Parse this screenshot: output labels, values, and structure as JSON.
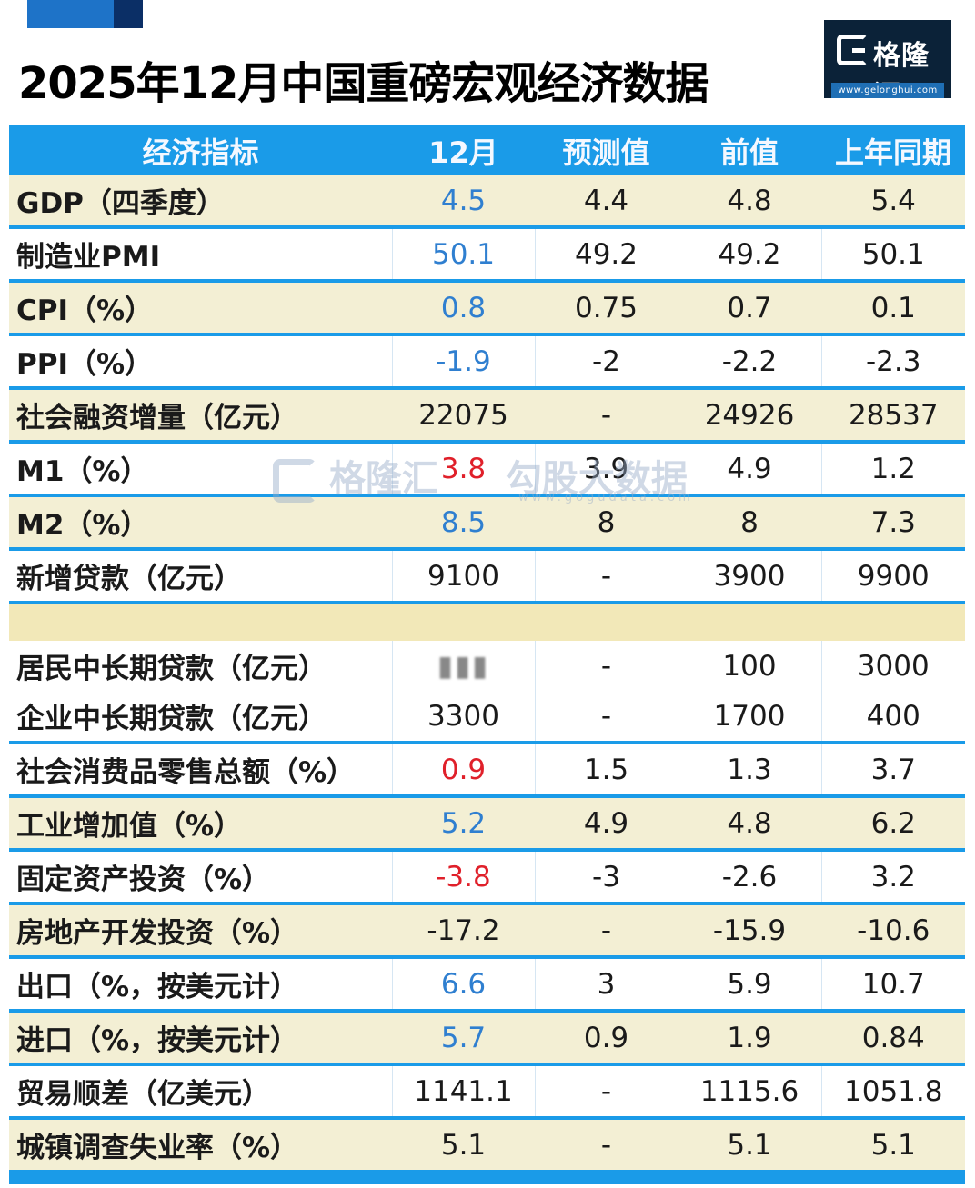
{
  "title": "2025年12月中国重磅宏观经济数据",
  "logo": {
    "brand": "格隆汇",
    "url": "www.gelonghui.com"
  },
  "watermark": {
    "text1": "格隆汇",
    "text2": "勾股大数据",
    "url2": "www.gogudata.com"
  },
  "colors": {
    "header": "#1a9be8",
    "cream_row": "#f3efd4",
    "up_value": "#2f7fd0",
    "down_value": "#e0202a"
  },
  "table": {
    "headers": [
      "经济指标",
      "12月",
      "预测值",
      "前值",
      "上年同期"
    ],
    "rows": [
      {
        "name": "GDP（四季度）",
        "cur": "4.5",
        "fc": "4.4",
        "prev": "4.8",
        "yoy": "5.4"
      },
      {
        "name": "制造业PMI",
        "cur": "50.1",
        "fc": "49.2",
        "prev": "49.2",
        "yoy": "50.1"
      },
      {
        "name": "CPI（%）",
        "cur": "0.8",
        "fc": "0.75",
        "prev": "0.7",
        "yoy": "0.1"
      },
      {
        "name": "PPI（%）",
        "cur": "-1.9",
        "fc": "-2",
        "prev": "-2.2",
        "yoy": "-2.3"
      },
      {
        "name": "社会融资增量（亿元）",
        "cur": "22075",
        "fc": "-",
        "prev": "24926",
        "yoy": "28537"
      },
      {
        "name": "M1（%）",
        "cur": "3.8",
        "fc": "3.9",
        "prev": "4.9",
        "yoy": "1.2"
      },
      {
        "name": "M2（%）",
        "cur": "8.5",
        "fc": "8",
        "prev": "8",
        "yoy": "7.3"
      },
      {
        "name": "新增贷款（亿元）",
        "cur": "9100",
        "fc": "-",
        "prev": "3900",
        "yoy": "9900"
      },
      {
        "name": "居民中长期贷款（亿元）",
        "cur": "",
        "fc": "-",
        "prev": "100",
        "yoy": "3000"
      },
      {
        "name": "企业中长期贷款（亿元）",
        "cur": "3300",
        "fc": "-",
        "prev": "1700",
        "yoy": "400"
      },
      {
        "name": "社会消费品零售总额（%）",
        "cur": "0.9",
        "fc": "1.5",
        "prev": "1.3",
        "yoy": "3.7"
      },
      {
        "name": "工业增加值（%）",
        "cur": "5.2",
        "fc": "4.9",
        "prev": "4.8",
        "yoy": "6.2"
      },
      {
        "name": "固定资产投资（%）",
        "cur": "-3.8",
        "fc": "-3",
        "prev": "-2.6",
        "yoy": "3.2"
      },
      {
        "name": "房地产开发投资（%）",
        "cur": "-17.2",
        "fc": "-",
        "prev": "-15.9",
        "yoy": "-10.6"
      },
      {
        "name": "出口（%，按美元计）",
        "cur": "6.6",
        "fc": "3",
        "prev": "5.9",
        "yoy": "10.7"
      },
      {
        "name": "进口（%，按美元计）",
        "cur": "5.7",
        "fc": "0.9",
        "prev": "1.9",
        "yoy": "0.84"
      },
      {
        "name": "贸易顺差（亿美元）",
        "cur": "1141.1",
        "fc": "-",
        "prev": "1115.6",
        "yoy": "1051.8"
      },
      {
        "name": "城镇调查失业率（%）",
        "cur": "5.1",
        "fc": "-",
        "prev": "5.1",
        "yoy": "5.1"
      }
    ]
  }
}
